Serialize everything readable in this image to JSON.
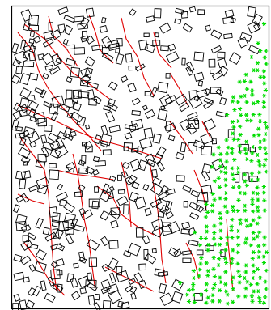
{
  "map": {
    "legend_text": "",
    "colors": {
      "background": "#ffffff",
      "frame": "#000000",
      "building_outline": "#000000",
      "road": "#e00000",
      "vegetation": "#00dd00"
    },
    "layers": [
      {
        "name": "buildings",
        "style": "black outline polygons"
      },
      {
        "name": "roads",
        "style": "red polylines"
      },
      {
        "name": "vegetation",
        "style": "green star markers",
        "symbol": "star-marker"
      }
    ]
  }
}
